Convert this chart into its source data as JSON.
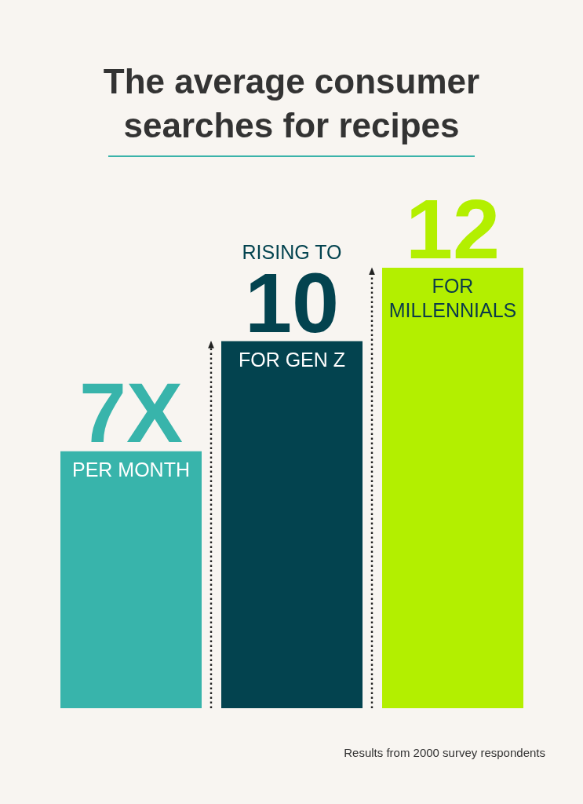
{
  "chart_data": {
    "type": "bar",
    "title": "The average consumer searches for recipes",
    "categories": [
      "PER MONTH",
      "FOR GEN Z",
      "FOR MILLENNIALS"
    ],
    "values": [
      7,
      10,
      12
    ],
    "value_labels": [
      "7X",
      "RISING TO 10",
      "12"
    ],
    "colors": [
      "#38b4ab",
      "#03434f",
      "#b3ef00"
    ],
    "annotations": [
      "Results from 2000 survey respondents"
    ]
  }
}
